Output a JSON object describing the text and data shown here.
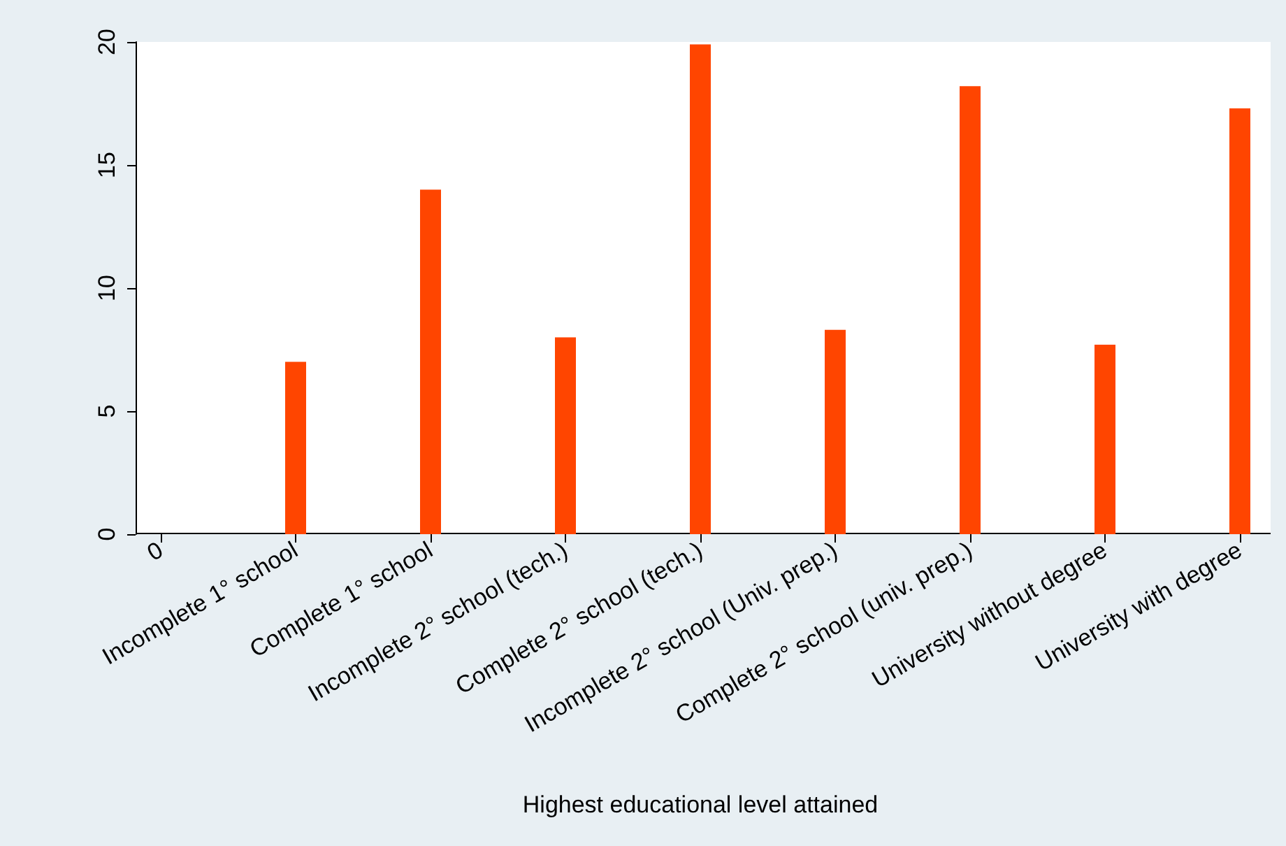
{
  "chart_data": {
    "type": "bar",
    "xlabel": "Highest educational level attained",
    "categories": [
      "0",
      "Incomplete 1° school",
      "Complete 1° school",
      "Incomplete 2° school (tech.)",
      "Complete 2° school (tech.)",
      "Incomplete 2° school (Univ. prep.)",
      "Complete 2° school (univ. prep.)",
      "University without degree",
      "University with degree"
    ],
    "values": [
      0,
      7.0,
      14.0,
      8.0,
      19.9,
      8.3,
      18.2,
      7.7,
      17.3
    ],
    "color": "#ff4500",
    "ylim": [
      0,
      20
    ],
    "yticks": [
      0,
      5,
      10,
      15,
      20
    ],
    "grid": false
  }
}
